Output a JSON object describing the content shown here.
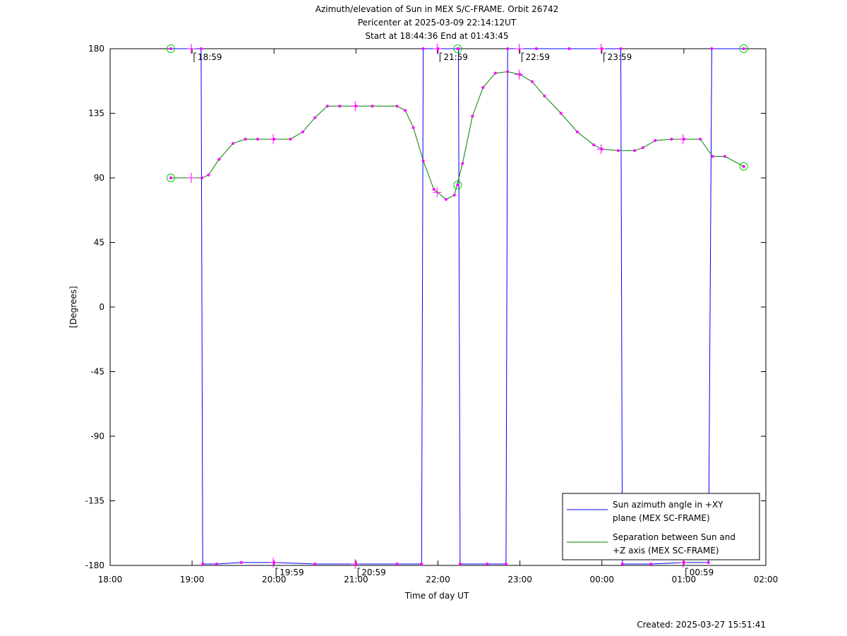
{
  "chart_data": {
    "type": "line",
    "title": [
      "Azimuth/elevation of Sun in MEX S/C-FRAME.  Orbit 26742",
      "Pericenter at 2025-03-09 22:14:12UT",
      "Start at 18:44:36 End at 01:43:45"
    ],
    "xlabel": "Time of day UT",
    "ylabel": "[Degrees]",
    "xlim": [
      18,
      26
    ],
    "ylim": [
      -180,
      180
    ],
    "xticks": [
      {
        "v": 18,
        "label": "18:00"
      },
      {
        "v": 19,
        "label": "19:00"
      },
      {
        "v": 20,
        "label": "20:00"
      },
      {
        "v": 21,
        "label": "21:00"
      },
      {
        "v": 22,
        "label": "22:00"
      },
      {
        "v": 23,
        "label": "23:00"
      },
      {
        "v": 24,
        "label": "00:00"
      },
      {
        "v": 25,
        "label": "01:00"
      },
      {
        "v": 26,
        "label": "02:00"
      }
    ],
    "yticks": [
      {
        "v": 180,
        "label": "180"
      },
      {
        "v": 135,
        "label": "135"
      },
      {
        "v": 90,
        "label": "90"
      },
      {
        "v": 45,
        "label": "45"
      },
      {
        "v": 0,
        "label": "0"
      },
      {
        "v": -45,
        "label": "-45"
      },
      {
        "v": -90,
        "label": "-90"
      },
      {
        "v": -135,
        "label": "-135"
      },
      {
        "v": -180,
        "label": "-180"
      }
    ],
    "legend_position": "bottom-right",
    "series": [
      {
        "name": "Sun azimuth angle in +XY plane (MEX SC-FRAME)",
        "legend_lines": [
          "Sun azimuth angle in +XY",
          "plane (MEX SC-FRAME)"
        ],
        "color": "#0000ff",
        "points": [
          [
            18.74,
            180
          ],
          [
            19.11,
            180
          ],
          [
            19.13,
            -179
          ],
          [
            19.3,
            -179
          ],
          [
            19.6,
            -178
          ],
          [
            20.0,
            -178
          ],
          [
            20.5,
            -179
          ],
          [
            21.0,
            -179
          ],
          [
            21.5,
            -179
          ],
          [
            21.8,
            -179
          ],
          [
            21.82,
            180
          ],
          [
            22.0,
            180
          ],
          [
            22.25,
            180
          ],
          [
            22.27,
            -179
          ],
          [
            22.6,
            -179
          ],
          [
            22.83,
            -179
          ],
          [
            22.85,
            180
          ],
          [
            23.2,
            180
          ],
          [
            23.6,
            180
          ],
          [
            24.0,
            180
          ],
          [
            24.23,
            180
          ],
          [
            24.25,
            -179
          ],
          [
            24.6,
            -179
          ],
          [
            25.0,
            -178
          ],
          [
            25.3,
            -178
          ],
          [
            25.34,
            180
          ],
          [
            25.73,
            180
          ]
        ]
      },
      {
        "name": "Separation between Sun and +Z axis (MEX SC-FRAME)",
        "legend_lines": [
          "Separation between Sun and",
          "+Z axis (MEX SC-FRAME)"
        ],
        "color": "#008000",
        "points": [
          [
            18.74,
            90
          ],
          [
            19.12,
            90
          ],
          [
            19.2,
            92
          ],
          [
            19.33,
            103
          ],
          [
            19.5,
            114
          ],
          [
            19.65,
            117
          ],
          [
            19.8,
            117
          ],
          [
            20.0,
            117
          ],
          [
            20.2,
            117
          ],
          [
            20.35,
            122
          ],
          [
            20.5,
            132
          ],
          [
            20.65,
            140
          ],
          [
            20.8,
            140
          ],
          [
            21.0,
            140
          ],
          [
            21.2,
            140
          ],
          [
            21.5,
            140
          ],
          [
            21.6,
            137
          ],
          [
            21.7,
            125
          ],
          [
            21.82,
            102
          ],
          [
            21.95,
            82
          ],
          [
            22.1,
            75
          ],
          [
            22.2,
            78
          ],
          [
            22.3,
            100
          ],
          [
            22.42,
            133
          ],
          [
            22.55,
            153
          ],
          [
            22.7,
            163
          ],
          [
            22.85,
            164
          ],
          [
            23.0,
            162
          ],
          [
            23.15,
            157
          ],
          [
            23.3,
            147
          ],
          [
            23.5,
            135
          ],
          [
            23.7,
            122
          ],
          [
            23.9,
            113
          ],
          [
            24.0,
            110
          ],
          [
            24.2,
            109
          ],
          [
            24.4,
            109
          ],
          [
            24.5,
            111
          ],
          [
            24.65,
            116
          ],
          [
            24.85,
            117
          ],
          [
            25.0,
            117
          ],
          [
            25.2,
            117
          ],
          [
            25.35,
            105
          ],
          [
            25.5,
            105
          ],
          [
            25.73,
            98
          ]
        ]
      }
    ],
    "orbit_time_labels": [
      {
        "x": 18.99,
        "y": 180,
        "label": "18:59",
        "side": "top"
      },
      {
        "x": 19.99,
        "y": -180,
        "label": "19:59",
        "side": "bottom"
      },
      {
        "x": 20.99,
        "y": -180,
        "label": "20:59",
        "side": "bottom"
      },
      {
        "x": 21.99,
        "y": 180,
        "label": "21:59",
        "side": "top"
      },
      {
        "x": 22.99,
        "y": 180,
        "label": "22:59",
        "side": "top"
      },
      {
        "x": 23.99,
        "y": 180,
        "label": "23:59",
        "side": "top"
      },
      {
        "x": 24.99,
        "y": -180,
        "label": "00:59",
        "side": "bottom"
      }
    ],
    "circle_markers": [
      [
        18.74,
        180
      ],
      [
        22.24,
        180
      ],
      [
        25.73,
        180
      ],
      [
        18.74,
        90
      ],
      [
        22.24,
        85
      ],
      [
        25.73,
        98
      ]
    ],
    "cross_markers": [
      [
        18.99,
        180
      ],
      [
        18.99,
        90
      ],
      [
        19.99,
        -178
      ],
      [
        19.99,
        117
      ],
      [
        20.99,
        -179
      ],
      [
        20.99,
        140
      ],
      [
        21.99,
        180
      ],
      [
        21.99,
        80
      ],
      [
        22.99,
        180
      ],
      [
        22.99,
        162
      ],
      [
        23.99,
        180
      ],
      [
        23.99,
        110
      ],
      [
        24.99,
        -178
      ],
      [
        24.99,
        117
      ]
    ],
    "created_label": "Created: 2025-03-27 15:51:41"
  }
}
